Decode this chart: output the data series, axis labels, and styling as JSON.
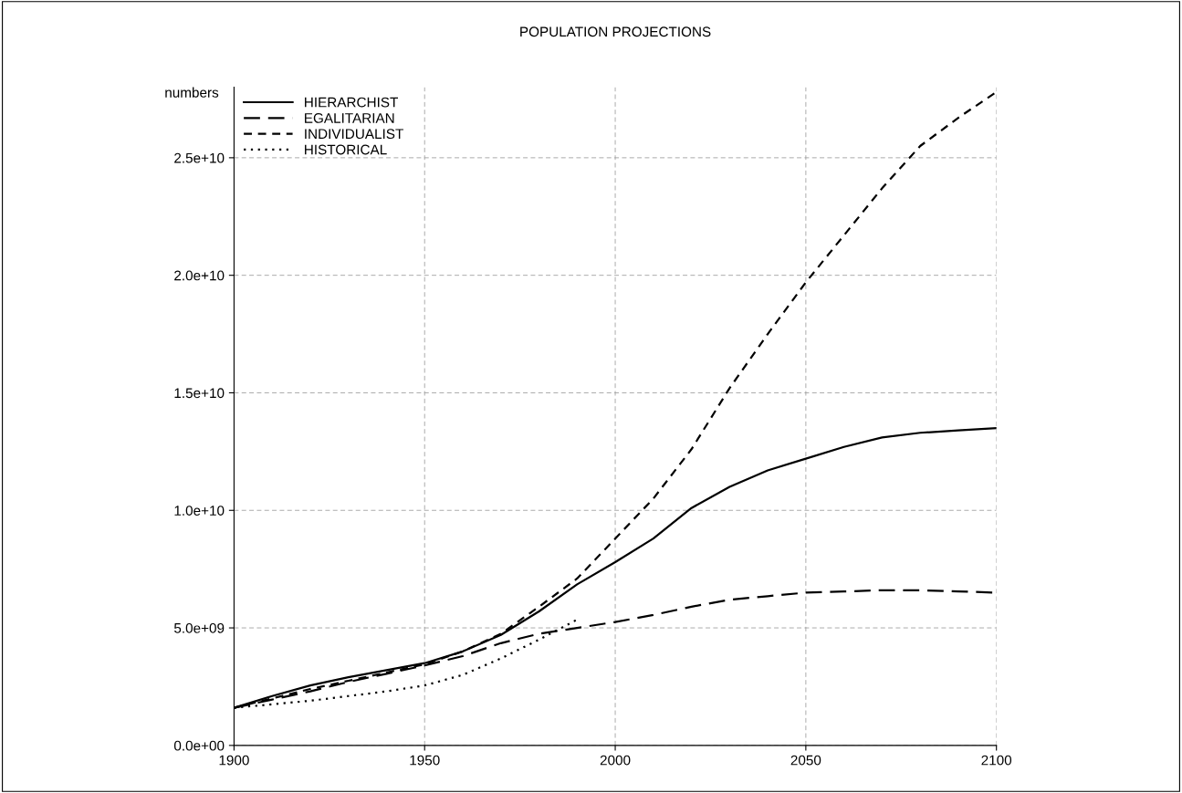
{
  "chart_data": {
    "type": "line",
    "title": "POPULATION PROJECTIONS",
    "ylabel": "numbers",
    "xlim": [
      1900,
      2100
    ],
    "xticks": [
      1900,
      1950,
      2000,
      2050,
      2100
    ],
    "ylim": [
      0,
      28000000000
    ],
    "yticks": [
      {
        "value": 0,
        "label": "0.0e+00"
      },
      {
        "value": 5000000000,
        "label": "5.0e+09"
      },
      {
        "value": 10000000000,
        "label": "1.0e+10"
      },
      {
        "value": 15000000000,
        "label": "1.5e+10"
      },
      {
        "value": 20000000000,
        "label": "2.0e+10"
      },
      {
        "value": 25000000000,
        "label": "2.5e+10"
      }
    ],
    "grid": true,
    "legend": "top left",
    "x": [
      1900,
      1910,
      1920,
      1930,
      1940,
      1950,
      1960,
      1970,
      1980,
      1990,
      2000,
      2010,
      2020,
      2030,
      2040,
      2050,
      2060,
      2070,
      2080,
      2090,
      2100
    ],
    "series": [
      {
        "name": "HIERARCHIST",
        "color": "#000000",
        "line_style": "solid",
        "values": [
          1600000000,
          2100000000,
          2550000000,
          2900000000,
          3200000000,
          3500000000,
          4000000000,
          4700000000,
          5700000000,
          6850000000,
          7800000000,
          8800000000,
          10100000000,
          11000000000,
          11700000000,
          12200000000,
          12700000000,
          13100000000,
          13300000000,
          13400000000,
          13500000000
        ]
      },
      {
        "name": "EGALITARIAN",
        "color": "#000000",
        "line_style": "long dashed",
        "values": [
          1600000000,
          1950000000,
          2300000000,
          2700000000,
          3050000000,
          3400000000,
          3800000000,
          4350000000,
          4750000000,
          5000000000,
          5250000000,
          5550000000,
          5900000000,
          6200000000,
          6350000000,
          6500000000,
          6550000000,
          6600000000,
          6600000000,
          6550000000,
          6500000000
        ]
      },
      {
        "name": "INDIVIDUALIST",
        "color": "#000000",
        "line_style": "dashed",
        "values": [
          1600000000,
          2000000000,
          2400000000,
          2750000000,
          3100000000,
          3450000000,
          4000000000,
          4750000000,
          5900000000,
          7100000000,
          8800000000,
          10500000000,
          12600000000,
          15200000000,
          17500000000,
          19700000000,
          21700000000,
          23700000000,
          25500000000,
          26700000000,
          27800000000
        ]
      },
      {
        "name": "HISTORICAL",
        "color": "#000000",
        "line_style": "dotted",
        "x": [
          1900,
          1910,
          1920,
          1930,
          1940,
          1950,
          1960,
          1970,
          1980,
          1990
        ],
        "values": [
          1600000000,
          1750000000,
          1900000000,
          2100000000,
          2300000000,
          2550000000,
          3000000000,
          3700000000,
          4500000000,
          5350000000
        ]
      }
    ]
  }
}
